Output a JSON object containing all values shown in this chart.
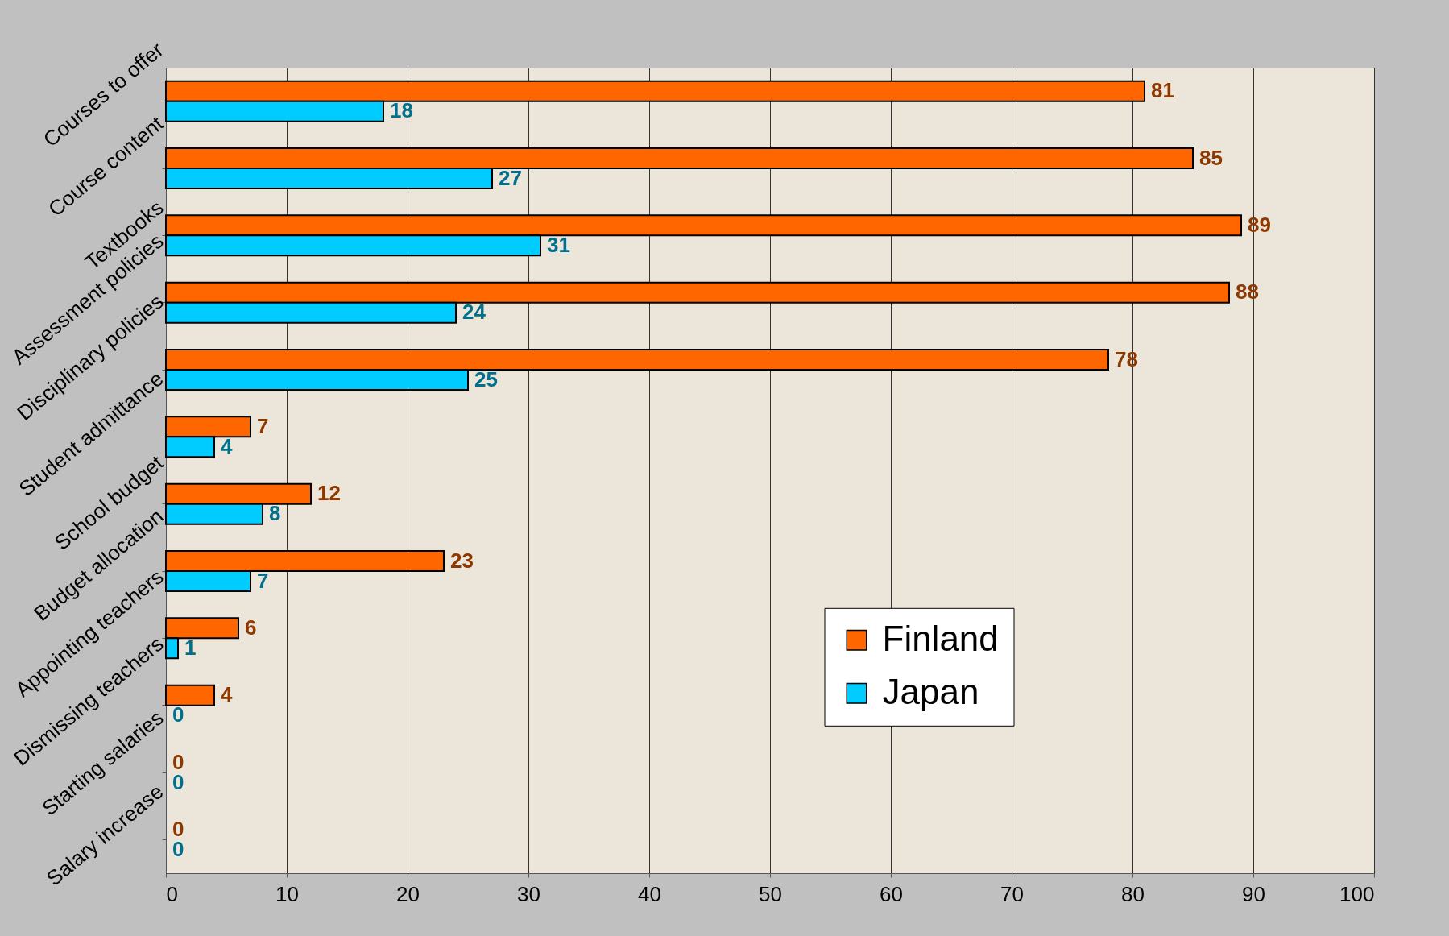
{
  "chart_data": {
    "type": "bar",
    "orientation": "horizontal",
    "categories": [
      "Courses to offer",
      "Course content",
      "Textbooks",
      "Assessment policies",
      "Disciplinary policies",
      "Student admittance",
      "School budget",
      "Budget allocation",
      "Appointing teachers",
      "Dismissing teachers",
      "Starting salaries",
      "Salary increase"
    ],
    "series": [
      {
        "name": "Finland",
        "color": "#ff6600",
        "values": [
          81,
          85,
          89,
          88,
          78,
          7,
          12,
          23,
          6,
          4,
          0,
          0
        ]
      },
      {
        "name": "Japan",
        "color": "#00ccff",
        "values": [
          18,
          27,
          31,
          24,
          25,
          4,
          8,
          7,
          1,
          0,
          0,
          0
        ]
      }
    ],
    "xlim": [
      0,
      100
    ],
    "xticks": [
      0,
      10,
      20,
      30,
      40,
      50,
      60,
      70,
      80,
      90,
      100
    ],
    "grid": "x",
    "legend": "right",
    "data_labels": true
  }
}
